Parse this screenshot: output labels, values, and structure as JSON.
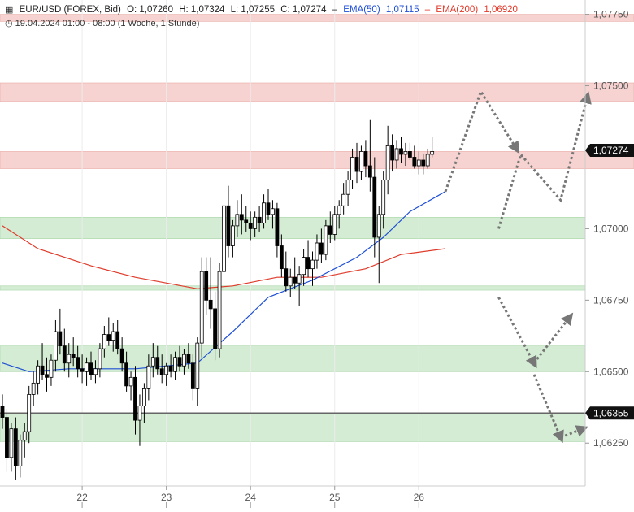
{
  "header": {
    "symbol": "EUR/USD (FOREX, Bid)",
    "open": "O: 1,07260",
    "high": "H: 1,07324",
    "low": "L: 1,07255",
    "close": "C: 1,07274",
    "ema50_label": "EMA(50)",
    "ema50_value": "1,07115",
    "ema200_label": "EMA(200)",
    "ema200_value": "1,06920",
    "date_range": "19.04.2024 01:00 - 08:00",
    "timeframe": "(1 Woche, 1 Stunde)"
  },
  "colors": {
    "bull": "#ffffff",
    "bear": "#000000",
    "ema50": "#1f4fd6",
    "ema200": "#e03a2a",
    "resistance_zone": "#f6d3d1",
    "support_zone": "#d3ecd3",
    "projection": "#777777"
  },
  "chart_data": {
    "type": "candlestick",
    "ylim": [
      1.061,
      1.078
    ],
    "y_ticks": [
      "1,07750",
      "1,07500",
      "1,07000",
      "1,06750",
      "1,06500",
      "1,06250"
    ],
    "x_ticks": [
      "22",
      "23",
      "24",
      "25",
      "26"
    ],
    "price_tags": [
      {
        "label": "1,07274",
        "value": 1.07274
      },
      {
        "label": "1,06355",
        "value": 1.06355
      }
    ],
    "horizontal_line": 1.06355,
    "resistance_zones": [
      [
        1.07725,
        1.0775
      ],
      [
        1.07445,
        1.0751
      ],
      [
        1.0721,
        1.0727
      ]
    ],
    "support_zones": [
      [
        1.06965,
        1.0704
      ],
      [
        1.06785,
        1.068
      ],
      [
        1.065,
        1.0659
      ],
      [
        1.06255,
        1.06355
      ]
    ],
    "candles": [
      [
        1.0638,
        1.0642,
        1.063,
        1.0634
      ],
      [
        1.0634,
        1.0637,
        1.0615,
        1.062
      ],
      [
        1.062,
        1.0632,
        1.0615,
        1.063
      ],
      [
        1.063,
        1.0634,
        1.0612,
        1.0617
      ],
      [
        1.0617,
        1.0628,
        1.0613,
        1.0626
      ],
      [
        1.0626,
        1.0632,
        1.062,
        1.0629
      ],
      [
        1.0629,
        1.0645,
        1.0625,
        1.0642
      ],
      [
        1.0642,
        1.065,
        1.0638,
        1.0646
      ],
      [
        1.0646,
        1.0654,
        1.0642,
        1.0652
      ],
      [
        1.0652,
        1.066,
        1.0647,
        1.0649
      ],
      [
        1.0649,
        1.0655,
        1.0643,
        1.0648
      ],
      [
        1.0648,
        1.0656,
        1.0645,
        1.0654
      ],
      [
        1.0654,
        1.0668,
        1.065,
        1.0664
      ],
      [
        1.0664,
        1.0672,
        1.0656,
        1.0659
      ],
      [
        1.0659,
        1.0665,
        1.065,
        1.0653
      ],
      [
        1.0653,
        1.066,
        1.0648,
        1.0656
      ],
      [
        1.0656,
        1.0662,
        1.0652,
        1.0655
      ],
      [
        1.0655,
        1.0659,
        1.0648,
        1.0651
      ],
      [
        1.0651,
        1.0656,
        1.0646,
        1.065
      ],
      [
        1.065,
        1.0655,
        1.0645,
        1.0653
      ],
      [
        1.0653,
        1.0657,
        1.0647,
        1.0649
      ],
      [
        1.0649,
        1.0654,
        1.0646,
        1.0651
      ],
      [
        1.0651,
        1.066,
        1.0648,
        1.0658
      ],
      [
        1.0658,
        1.0666,
        1.0655,
        1.0663
      ],
      [
        1.0663,
        1.0669,
        1.0659,
        1.0661
      ],
      [
        1.0661,
        1.0667,
        1.0657,
        1.0664
      ],
      [
        1.0664,
        1.0668,
        1.0656,
        1.0658
      ],
      [
        1.0658,
        1.0662,
        1.065,
        1.0653
      ],
      [
        1.0653,
        1.0657,
        1.0643,
        1.0645
      ],
      [
        1.0645,
        1.065,
        1.064,
        1.0648
      ],
      [
        1.0648,
        1.0652,
        1.0628,
        1.0633
      ],
      [
        1.0633,
        1.0642,
        1.0624,
        1.0638
      ],
      [
        1.0638,
        1.0646,
        1.0632,
        1.0644
      ],
      [
        1.0644,
        1.0656,
        1.064,
        1.0652
      ],
      [
        1.0652,
        1.066,
        1.0648,
        1.0655
      ],
      [
        1.0655,
        1.0659,
        1.0649,
        1.0651
      ],
      [
        1.0651,
        1.0656,
        1.0646,
        1.0649
      ],
      [
        1.0649,
        1.0653,
        1.0645,
        1.0652
      ],
      [
        1.0652,
        1.0656,
        1.0648,
        1.065
      ],
      [
        1.065,
        1.0657,
        1.0647,
        1.0655
      ],
      [
        1.0655,
        1.0659,
        1.065,
        1.0652
      ],
      [
        1.0652,
        1.0658,
        1.0649,
        1.0656
      ],
      [
        1.0656,
        1.066,
        1.0651,
        1.0653
      ],
      [
        1.0653,
        1.0656,
        1.064,
        1.0644
      ],
      [
        1.0644,
        1.0662,
        1.0638,
        1.066
      ],
      [
        1.066,
        1.069,
        1.0655,
        1.0685
      ],
      [
        1.0685,
        1.069,
        1.067,
        1.0675
      ],
      [
        1.0675,
        1.069,
        1.0665,
        1.0672
      ],
      [
        1.0672,
        1.0678,
        1.0654,
        1.0658
      ],
      [
        1.0658,
        1.0688,
        1.0655,
        1.0685
      ],
      [
        1.0685,
        1.0712,
        1.068,
        1.0708
      ],
      [
        1.0708,
        1.0715,
        1.069,
        1.0694
      ],
      [
        1.0694,
        1.0703,
        1.069,
        1.0701
      ],
      [
        1.0701,
        1.071,
        1.0697,
        1.0705
      ],
      [
        1.0705,
        1.0712,
        1.0698,
        1.0703
      ],
      [
        1.0703,
        1.0708,
        1.0699,
        1.0702
      ],
      [
        1.0702,
        1.0706,
        1.0696,
        1.07
      ],
      [
        1.07,
        1.0706,
        1.0697,
        1.0704
      ],
      [
        1.0704,
        1.0708,
        1.0699,
        1.0702
      ],
      [
        1.0702,
        1.0712,
        1.07,
        1.0709
      ],
      [
        1.0709,
        1.0714,
        1.0703,
        1.0705
      ],
      [
        1.0705,
        1.071,
        1.07,
        1.0707
      ],
      [
        1.0707,
        1.0709,
        1.069,
        1.0694
      ],
      [
        1.0694,
        1.0698,
        1.0683,
        1.0686
      ],
      [
        1.0686,
        1.0692,
        1.0678,
        1.068
      ],
      [
        1.068,
        1.0686,
        1.0676,
        1.0683
      ],
      [
        1.0683,
        1.069,
        1.0679,
        1.0681
      ],
      [
        1.0681,
        1.0687,
        1.0673,
        1.0684
      ],
      [
        1.0684,
        1.0693,
        1.068,
        1.069
      ],
      [
        1.069,
        1.0696,
        1.0683,
        1.0686
      ],
      [
        1.0686,
        1.0692,
        1.068,
        1.0689
      ],
      [
        1.0689,
        1.0698,
        1.0686,
        1.0695
      ],
      [
        1.0695,
        1.07,
        1.0688,
        1.0691
      ],
      [
        1.0691,
        1.0703,
        1.0689,
        1.0701
      ],
      [
        1.0701,
        1.0706,
        1.0695,
        1.0698
      ],
      [
        1.0698,
        1.0708,
        1.0696,
        1.0705
      ],
      [
        1.0705,
        1.071,
        1.07,
        1.0708
      ],
      [
        1.0708,
        1.0716,
        1.0705,
        1.0712
      ],
      [
        1.0712,
        1.072,
        1.0708,
        1.0717
      ],
      [
        1.0717,
        1.0728,
        1.0714,
        1.0725
      ],
      [
        1.0725,
        1.073,
        1.0716,
        1.072
      ],
      [
        1.072,
        1.0729,
        1.0717,
        1.0727
      ],
      [
        1.0727,
        1.0731,
        1.0718,
        1.0722
      ],
      [
        1.0722,
        1.0738,
        1.0713,
        1.0718
      ],
      [
        1.0718,
        1.0725,
        1.069,
        1.0697
      ],
      [
        1.0697,
        1.0708,
        1.0681,
        1.0705
      ],
      [
        1.0705,
        1.072,
        1.07,
        1.0717
      ],
      [
        1.0717,
        1.0736,
        1.0712,
        1.0729
      ],
      [
        1.0729,
        1.0733,
        1.072,
        1.0724
      ],
      [
        1.0724,
        1.0731,
        1.0721,
        1.0728
      ],
      [
        1.0728,
        1.0732,
        1.0723,
        1.0726
      ],
      [
        1.0726,
        1.073,
        1.0722,
        1.0727
      ],
      [
        1.0727,
        1.073,
        1.0724,
        1.0725
      ],
      [
        1.0725,
        1.0729,
        1.0721,
        1.0722
      ],
      [
        1.0722,
        1.0727,
        1.0719,
        1.0724
      ],
      [
        1.0724,
        1.0726,
        1.0719,
        1.0722
      ],
      [
        1.0722,
        1.0728,
        1.0721,
        1.0726
      ],
      [
        1.0726,
        1.0732,
        1.0725,
        1.0727
      ]
    ],
    "ema50": [
      [
        0,
        1.0653
      ],
      [
        6,
        1.065
      ],
      [
        15,
        1.0651
      ],
      [
        30,
        1.0651
      ],
      [
        44,
        1.0653
      ],
      [
        52,
        1.0664
      ],
      [
        60,
        1.0676
      ],
      [
        70,
        1.0682
      ],
      [
        80,
        1.069
      ],
      [
        86,
        1.0697
      ],
      [
        92,
        1.0706
      ],
      [
        100,
        1.0713
      ]
    ],
    "ema200": [
      [
        0,
        1.0701
      ],
      [
        8,
        1.0693
      ],
      [
        20,
        1.0687
      ],
      [
        30,
        1.0683
      ],
      [
        44,
        1.0679
      ],
      [
        52,
        1.068
      ],
      [
        62,
        1.0683
      ],
      [
        72,
        1.0683
      ],
      [
        82,
        1.0686
      ],
      [
        90,
        1.0691
      ],
      [
        100,
        1.0693
      ]
    ],
    "projections": [
      [
        [
          100,
          1.0713
        ],
        [
          108,
          1.0748
        ],
        [
          116,
          1.0728
        ]
      ],
      [
        [
          112,
          1.07
        ],
        [
          117,
          1.0726
        ],
        [
          126,
          1.071
        ],
        [
          132,
          1.0746
        ]
      ],
      [
        [
          112,
          1.0676
        ],
        [
          120,
          1.0653
        ]
      ],
      [
        [
          120,
          1.0653
        ],
        [
          128,
          1.0669
        ]
      ],
      [
        [
          120,
          1.0649
        ],
        [
          126,
          1.0627
        ]
      ],
      [
        [
          126,
          1.0627
        ],
        [
          131,
          1.063
        ]
      ]
    ],
    "x_tick_positions": [
      18,
      37,
      56,
      75,
      94
    ]
  }
}
